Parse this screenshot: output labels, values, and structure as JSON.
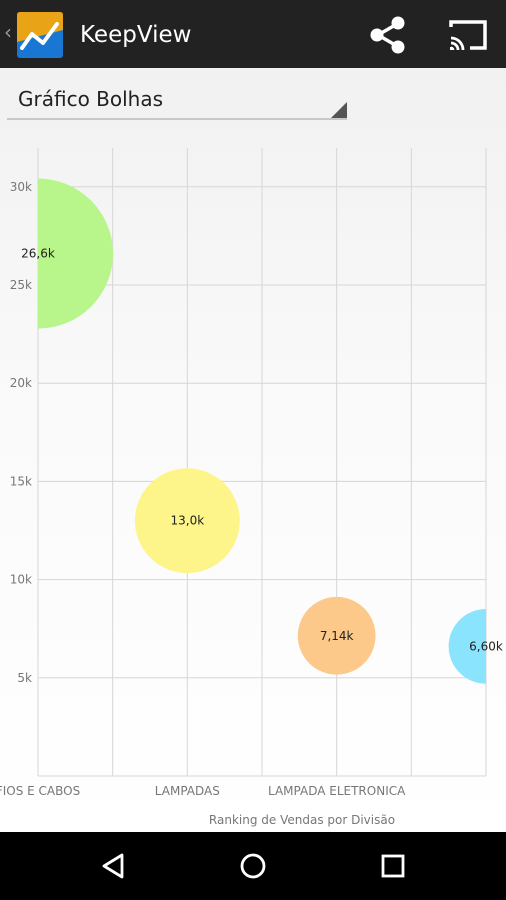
{
  "app": {
    "title": "KeepView",
    "icon": "keepview-line-chart-icon",
    "actions": [
      "share-icon",
      "cast-icon"
    ]
  },
  "selector": {
    "value": "Gráfico Bolhas"
  },
  "chart_data": {
    "type": "scatter",
    "subtype": "bubble",
    "xlabel": "Ranking de Vendas por Divisão",
    "ylabel": "",
    "categories": [
      "FIOS E CABOS",
      "LAMPADAS",
      "LAMPADA ELETRONICA"
    ],
    "ylim": [
      0,
      32500
    ],
    "yticks": [
      "5k",
      "10k",
      "15k",
      "20k",
      "25k",
      "30k"
    ],
    "grid": true,
    "points": [
      {
        "x": 0,
        "y": 26600,
        "label": "26,6k",
        "color": "#b8f58a"
      },
      {
        "x": 2,
        "y": 13000,
        "label": "13,0k",
        "color": "#fdf58a"
      },
      {
        "x": 4,
        "y": 7140,
        "label": "7,14k",
        "color": "#fdc98a"
      },
      {
        "x": 6,
        "y": 6600,
        "label": "6,60k",
        "color": "#8ae4fd"
      }
    ]
  },
  "navigation": [
    "back-icon",
    "home-icon",
    "recents-icon"
  ]
}
